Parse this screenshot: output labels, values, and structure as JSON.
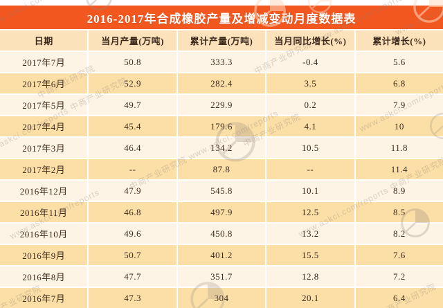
{
  "title": "2016-2017年合成橡胶产量及增减变动月度数据表",
  "watermark": {
    "brand": "中商产业研究院",
    "url": "www.askci.com/reports"
  },
  "colors": {
    "banner": "#f2571f",
    "header_bg": "#fbe2ba",
    "row_light": "#fdf4e5",
    "row_dark": "#fbdfa6",
    "text": "#3e2a1d",
    "title_text": "#ffffff"
  },
  "chart_data": {
    "type": "table",
    "title": "2016-2017年合成橡胶产量及增减变动月度数据表",
    "columns": [
      "日期",
      "当月产量(万吨)",
      "累计产量(万吨)",
      "当月同比增长(%)",
      "累计增长(%)"
    ],
    "rows": [
      [
        "2017年7月",
        "50.8",
        "333.3",
        "-0.4",
        "5.6"
      ],
      [
        "2017年6月",
        "52.9",
        "282.4",
        "3.5",
        "6.8"
      ],
      [
        "2017年5月",
        "49.7",
        "229.9",
        "0.2",
        "7.9"
      ],
      [
        "2017年4月",
        "45.4",
        "179.6",
        "4.1",
        "10"
      ],
      [
        "2017年3月",
        "46.4",
        "134.2",
        "10.5",
        "11.8"
      ],
      [
        "2017年2月",
        "--",
        "87.8",
        "--",
        "11.4"
      ],
      [
        "2016年12月",
        "47.9",
        "545.8",
        "10.1",
        "8.9"
      ],
      [
        "2016年11月",
        "46.8",
        "497.9",
        "12.5",
        "8.5"
      ],
      [
        "2016年10月",
        "49.6",
        "450.8",
        "13.2",
        "8.2"
      ],
      [
        "2016年9月",
        "50.7",
        "401.2",
        "15.5",
        "7.6"
      ],
      [
        "2016年8月",
        "47.7",
        "351.7",
        "12.8",
        "7.2"
      ],
      [
        "2016年7月",
        "47.3",
        "304",
        "20.1",
        "6.4"
      ]
    ]
  }
}
